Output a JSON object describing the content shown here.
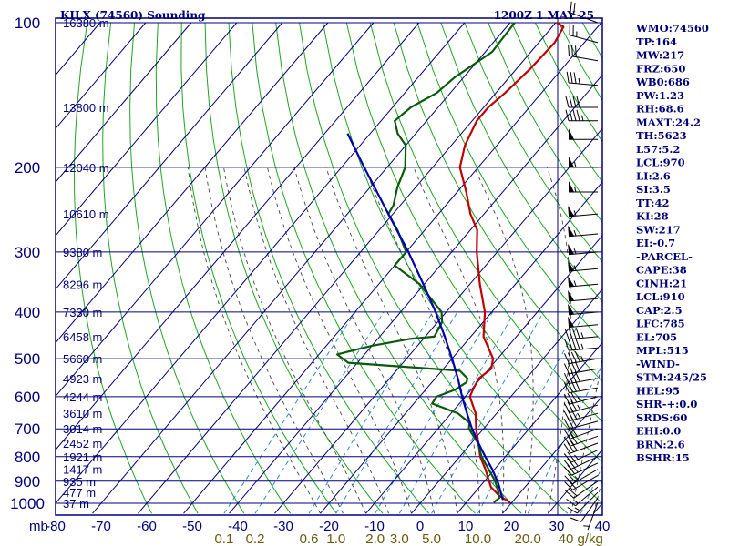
{
  "header": {
    "station": "KILX (74560) Sounding",
    "time": "1200Z  1 MAY 25"
  },
  "colors": {
    "frame": "#00007a",
    "temperature": "#c00000",
    "dewpoint": "#0a5a0a",
    "parcel": "#0000b0",
    "dry_adiabat": "#1fa51f",
    "moist_adiabat": "#444444",
    "mixing_ratio": "#1f7fd0",
    "wind": "#000000"
  },
  "chart_data": {
    "type": "line",
    "title": "KILX (74560) Sounding",
    "subtitle": "1200Z  1 MAY 25",
    "y_scale": "log-pressure",
    "ylim_mb": [
      1050,
      100
    ],
    "xlim_C": [
      -80,
      40
    ],
    "pressure_ticks": [
      100,
      200,
      300,
      400,
      500,
      600,
      700,
      800,
      900,
      1000
    ],
    "temperature_ticks": [
      -80,
      -70,
      -60,
      -50,
      -40,
      -30,
      -20,
      -10,
      0,
      10,
      20,
      30,
      40
    ],
    "x_unit_label": "mb",
    "mixing_ratio_ticks": [
      "0.1",
      "0.2",
      "0.6",
      "1.0",
      "2.0",
      "3.0",
      "5.0",
      "10.0",
      "20.0",
      "40 g/kg"
    ],
    "height_labels": [
      {
        "p": 100,
        "h": "16380 m"
      },
      {
        "p": 150,
        "h": "13800 m"
      },
      {
        "p": 200,
        "h": "12040 m"
      },
      {
        "p": 250,
        "h": "10610 m"
      },
      {
        "p": 300,
        "h": "9380 m"
      },
      {
        "p": 350,
        "h": "8296 m"
      },
      {
        "p": 400,
        "h": "7330 m"
      },
      {
        "p": 450,
        "h": "6458 m"
      },
      {
        "p": 500,
        "h": "5660 m"
      },
      {
        "p": 550,
        "h": "4923 m"
      },
      {
        "p": 600,
        "h": "4244 m"
      },
      {
        "p": 650,
        "h": "3610 m"
      },
      {
        "p": 700,
        "h": "3014 m"
      },
      {
        "p": 750,
        "h": "2452 m"
      },
      {
        "p": 800,
        "h": "1921 m"
      },
      {
        "p": 850,
        "h": "1417 m"
      },
      {
        "p": 900,
        "h": "935 m"
      },
      {
        "p": 950,
        "h": "477 m"
      },
      {
        "p": 1000,
        "h": "37 m"
      }
    ],
    "series": [
      {
        "key": "temperature",
        "points": [
          [
            996,
            19.6
          ],
          [
            965,
            16
          ],
          [
            925,
            12.5
          ],
          [
            850,
            8
          ],
          [
            800,
            4.5
          ],
          [
            750,
            1.6
          ],
          [
            700,
            -1.6
          ],
          [
            650,
            -4.6
          ],
          [
            600,
            -9
          ],
          [
            575,
            -9.8
          ],
          [
            550,
            -10.4
          ],
          [
            525,
            -9.5
          ],
          [
            500,
            -11
          ],
          [
            450,
            -17.2
          ],
          [
            400,
            -21.5
          ],
          [
            350,
            -27.8
          ],
          [
            300,
            -34.5
          ],
          [
            270,
            -38.5
          ],
          [
            250,
            -43
          ],
          [
            225,
            -48
          ],
          [
            200,
            -54
          ],
          [
            180,
            -57
          ],
          [
            160,
            -59
          ],
          [
            150,
            -59
          ],
          [
            140,
            -58
          ],
          [
            125,
            -57
          ],
          [
            110,
            -56.5
          ],
          [
            102,
            -57.5
          ],
          [
            100,
            -59.8
          ]
        ]
      },
      {
        "key": "dewpoint",
        "points": [
          [
            996,
            16
          ],
          [
            975,
            16.4
          ],
          [
            950,
            15.2
          ],
          [
            900,
            12.4
          ],
          [
            850,
            8.7
          ],
          [
            800,
            4.8
          ],
          [
            750,
            1.5
          ],
          [
            700,
            -3.2
          ],
          [
            680,
            -4.2
          ],
          [
            650,
            -8.5
          ],
          [
            620,
            -16
          ],
          [
            600,
            -16.3
          ],
          [
            580,
            -13.5
          ],
          [
            560,
            -12.4
          ],
          [
            550,
            -12.9
          ],
          [
            530,
            -16
          ],
          [
            510,
            -42
          ],
          [
            490,
            -46
          ],
          [
            470,
            -40
          ],
          [
            455,
            -33
          ],
          [
            450,
            -28
          ],
          [
            420,
            -29
          ],
          [
            400,
            -31
          ],
          [
            350,
            -41
          ],
          [
            320,
            -50
          ],
          [
            300,
            -50
          ],
          [
            270,
            -56
          ],
          [
            250,
            -61
          ],
          [
            240,
            -61.5
          ],
          [
            220,
            -64
          ],
          [
            200,
            -66
          ],
          [
            180,
            -70
          ],
          [
            170,
            -74
          ],
          [
            160,
            -77
          ],
          [
            150,
            -76
          ],
          [
            140,
            -73
          ],
          [
            130,
            -72
          ],
          [
            115,
            -68.5
          ],
          [
            100,
            -69
          ]
        ]
      },
      {
        "key": "parcel",
        "points": [
          [
            985,
            17.6
          ],
          [
            910,
            13.5
          ],
          [
            850,
            9.5
          ],
          [
            800,
            5.6
          ],
          [
            750,
            1.6
          ],
          [
            700,
            -2.5
          ],
          [
            650,
            -6.5
          ],
          [
            600,
            -10.7
          ],
          [
            550,
            -15
          ],
          [
            500,
            -20
          ],
          [
            450,
            -25.7
          ],
          [
            400,
            -32.3
          ],
          [
            350,
            -40.2
          ],
          [
            300,
            -49.5
          ],
          [
            250,
            -61
          ],
          [
            200,
            -75
          ],
          [
            170,
            -85
          ]
        ]
      }
    ],
    "wind_barbs": [
      {
        "p": 996,
        "dir": 200,
        "kt": 5
      },
      {
        "p": 975,
        "dir": 215,
        "kt": 10
      },
      {
        "p": 950,
        "dir": 225,
        "kt": 15
      },
      {
        "p": 925,
        "dir": 230,
        "kt": 15
      },
      {
        "p": 900,
        "dir": 235,
        "kt": 20
      },
      {
        "p": 875,
        "dir": 240,
        "kt": 20
      },
      {
        "p": 850,
        "dir": 240,
        "kt": 25
      },
      {
        "p": 825,
        "dir": 245,
        "kt": 25
      },
      {
        "p": 800,
        "dir": 245,
        "kt": 25
      },
      {
        "p": 775,
        "dir": 245,
        "kt": 25
      },
      {
        "p": 750,
        "dir": 250,
        "kt": 30
      },
      {
        "p": 725,
        "dir": 250,
        "kt": 30
      },
      {
        "p": 700,
        "dir": 250,
        "kt": 30
      },
      {
        "p": 675,
        "dir": 255,
        "kt": 30
      },
      {
        "p": 650,
        "dir": 255,
        "kt": 35
      },
      {
        "p": 625,
        "dir": 255,
        "kt": 35
      },
      {
        "p": 600,
        "dir": 255,
        "kt": 35
      },
      {
        "p": 575,
        "dir": 260,
        "kt": 40
      },
      {
        "p": 550,
        "dir": 260,
        "kt": 40
      },
      {
        "p": 525,
        "dir": 260,
        "kt": 40
      },
      {
        "p": 500,
        "dir": 260,
        "kt": 45
      },
      {
        "p": 475,
        "dir": 265,
        "kt": 45
      },
      {
        "p": 450,
        "dir": 265,
        "kt": 45
      },
      {
        "p": 425,
        "dir": 265,
        "kt": 50
      },
      {
        "p": 400,
        "dir": 265,
        "kt": 50
      },
      {
        "p": 375,
        "dir": 265,
        "kt": 50
      },
      {
        "p": 350,
        "dir": 265,
        "kt": 55
      },
      {
        "p": 325,
        "dir": 265,
        "kt": 55
      },
      {
        "p": 300,
        "dir": 265,
        "kt": 55
      },
      {
        "p": 275,
        "dir": 265,
        "kt": 55
      },
      {
        "p": 250,
        "dir": 265,
        "kt": 55
      },
      {
        "p": 225,
        "dir": 270,
        "kt": 55
      },
      {
        "p": 200,
        "dir": 270,
        "kt": 55
      },
      {
        "p": 175,
        "dir": 270,
        "kt": 50
      },
      {
        "p": 160,
        "dir": 270,
        "kt": 45
      },
      {
        "p": 150,
        "dir": 270,
        "kt": 40
      },
      {
        "p": 135,
        "dir": 275,
        "kt": 35
      },
      {
        "p": 120,
        "dir": 280,
        "kt": 30
      },
      {
        "p": 110,
        "dir": 285,
        "kt": 25
      },
      {
        "p": 100,
        "dir": 290,
        "kt": 20
      }
    ]
  },
  "indices": [
    "WMO:74560",
    "TP:164",
    "MW:217",
    "FRZ:650",
    "WB0:686",
    "PW:1.23",
    "RH:68.6",
    "MAXT:24.2",
    "TH:5623",
    "L57:5.2",
    "LCL:970",
    "LI:2.6",
    "SI:3.5",
    "TT:42",
    "KI:28",
    "SW:217",
    "EI:-0.7",
    "-PARCEL-",
    "CAPE:38",
    "CINH:21",
    "LCL:910",
    "CAP:2.5",
    "LFC:785",
    "EL:705",
    "MPL:515",
    "-WIND-",
    "STM:245/25",
    "HEL:95",
    "SHR-+:0.0",
    "SRDS:60",
    "EHI:0.0",
    "BRN:2.6",
    "BSHR:15"
  ]
}
